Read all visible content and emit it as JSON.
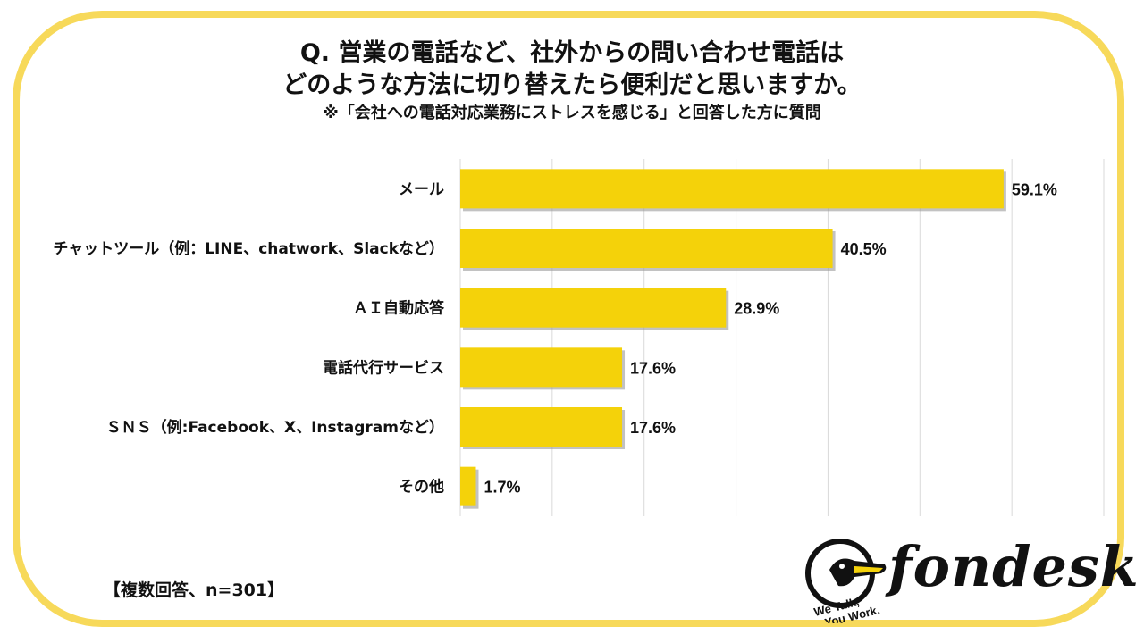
{
  "title": {
    "line1": "Q. 営業の電話など、社外からの問い合わせ電話は",
    "line2": "どのような方法に切り替えたら便利だと思いますか。",
    "subtitle": "※「会社への電話対応業務にストレスを感じる」と回答した方に質問"
  },
  "footnote": "【複数回答、n=301】",
  "logo": {
    "name": "fondesk",
    "tagline": "We Talk, You Work."
  },
  "colors": {
    "bar": "#f4d20a",
    "frame": "#f7d95a",
    "grid": "#d9d9d9"
  },
  "chart_data": {
    "type": "bar",
    "orientation": "horizontal",
    "categories": [
      "メール",
      "チャットツール（例：LINE、chatwork、Slackなど）",
      "ＡＩ自動応答",
      "電話代行サービス",
      "ＳＮＳ（例:Facebook、X、Instagramなど）",
      "その他"
    ],
    "values": [
      59.1,
      40.5,
      28.9,
      17.6,
      17.6,
      1.7
    ],
    "data_labels": [
      "59.1%",
      "40.5%",
      "28.9%",
      "17.6%",
      "17.6%",
      "1.7%"
    ],
    "xlim": [
      0,
      70
    ],
    "grid": true,
    "unit": "%"
  }
}
